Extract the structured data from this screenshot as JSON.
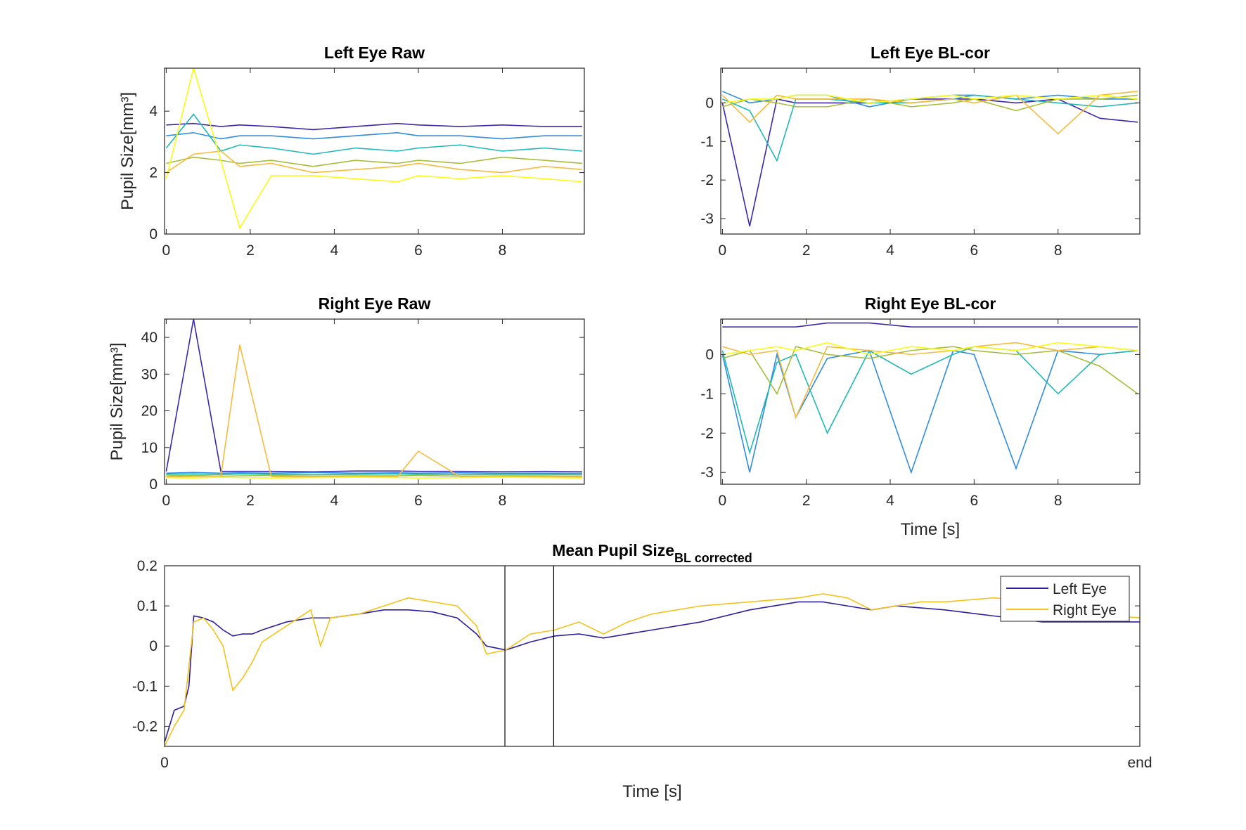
{
  "chart_data": [
    {
      "type": "line",
      "title": "Left Eye Raw",
      "ylabel": "Pupil Size[mm³]",
      "x": [
        0,
        0.65,
        1.3,
        1.75,
        2.5,
        3.5,
        4.5,
        5.5,
        6,
        7,
        8,
        9,
        9.9
      ],
      "series": [
        {
          "color": "#3e26a8",
          "values": [
            3.55,
            3.6,
            3.5,
            3.55,
            3.5,
            3.4,
            3.5,
            3.6,
            3.55,
            3.5,
            3.55,
            3.5,
            3.5
          ]
        },
        {
          "color": "#2f8ce0",
          "values": [
            3.2,
            3.3,
            3.1,
            3.2,
            3.2,
            3.1,
            3.2,
            3.3,
            3.2,
            3.2,
            3.1,
            3.2,
            3.2
          ]
        },
        {
          "color": "#1fb8b4",
          "values": [
            2.8,
            3.9,
            2.7,
            2.9,
            2.8,
            2.6,
            2.8,
            2.7,
            2.8,
            2.9,
            2.7,
            2.8,
            2.7
          ]
        },
        {
          "color": "#a5be3a",
          "values": [
            2.3,
            2.5,
            2.4,
            2.3,
            2.4,
            2.2,
            2.4,
            2.3,
            2.4,
            2.3,
            2.5,
            2.4,
            2.3
          ]
        },
        {
          "color": "#f8ba3d",
          "values": [
            2.0,
            2.6,
            2.7,
            2.2,
            2.3,
            2.0,
            2.1,
            2.2,
            2.3,
            2.1,
            2.0,
            2.2,
            2.1
          ]
        },
        {
          "color": "#f9fb15",
          "values": [
            1.8,
            5.4,
            2.4,
            0.2,
            1.9,
            1.9,
            1.8,
            1.7,
            1.9,
            1.8,
            1.9,
            1.8,
            1.7
          ]
        }
      ],
      "xlim": [
        -0.04,
        9.95
      ],
      "ylim": [
        0,
        5.4
      ],
      "xticks": [
        0,
        2,
        4,
        6,
        8
      ],
      "yticks": [
        0,
        2,
        4
      ]
    },
    {
      "type": "line",
      "title": "Left Eye BL-cor",
      "x": [
        0,
        0.65,
        1.3,
        1.75,
        2.5,
        3.5,
        4.5,
        5.5,
        6,
        7,
        8,
        9,
        9.9
      ],
      "series": [
        {
          "color": "#3e26a8",
          "values": [
            0,
            -3.2,
            0.1,
            0,
            0,
            0,
            0.1,
            0.1,
            0.1,
            0,
            0.1,
            -0.4,
            -0.5
          ]
        },
        {
          "color": "#2f8ce0",
          "values": [
            0.3,
            0,
            0.1,
            0.2,
            0.2,
            -0.1,
            0.1,
            0.2,
            0.2,
            0.1,
            0.2,
            0.1,
            0.1
          ]
        },
        {
          "color": "#1fb8b4",
          "values": [
            0.1,
            -0.2,
            -1.5,
            0.1,
            0.1,
            0,
            0,
            0.1,
            0.2,
            0.1,
            0,
            -0.1,
            0
          ]
        },
        {
          "color": "#a5be3a",
          "values": [
            -0.1,
            0.1,
            0,
            -0.1,
            -0.1,
            0.1,
            -0.1,
            0,
            0.1,
            -0.2,
            0.1,
            0.1,
            0.2
          ]
        },
        {
          "color": "#f8ba3d",
          "values": [
            0.2,
            -0.5,
            0.2,
            0.1,
            0.1,
            0.1,
            0,
            0.1,
            0,
            0.2,
            -0.8,
            0.2,
            0.3
          ]
        },
        {
          "color": "#f9fb15",
          "values": [
            0,
            0.1,
            0.1,
            0.2,
            0.2,
            0,
            0.1,
            0.2,
            0.1,
            0.2,
            0.1,
            0.2,
            0.1
          ]
        }
      ],
      "xlim": [
        -0.04,
        9.95
      ],
      "ylim": [
        -3.4,
        0.9
      ],
      "xticks": [
        0,
        2,
        4,
        6,
        8
      ],
      "yticks": [
        -3,
        -2,
        -1,
        0
      ]
    },
    {
      "type": "line",
      "title": "Right Eye Raw",
      "ylabel": "Pupil Size[mm³]",
      "x": [
        0,
        0.65,
        1.3,
        1.75,
        2.5,
        3.5,
        4.5,
        5.5,
        6,
        7,
        8,
        9,
        9.9
      ],
      "series": [
        {
          "color": "#3e26a8",
          "values": [
            3.5,
            45,
            3.5,
            3.5,
            3.5,
            3.4,
            3.6,
            3.6,
            3.5,
            3.5,
            3.4,
            3.5,
            3.4
          ]
        },
        {
          "color": "#2f8ce0",
          "values": [
            3,
            3.2,
            3,
            3.1,
            3,
            3.2,
            3,
            3.1,
            3,
            3.1,
            3,
            3,
            3
          ]
        },
        {
          "color": "#1fb8b4",
          "values": [
            2.7,
            2.8,
            2.6,
            2.8,
            2.7,
            2.6,
            2.7,
            2.8,
            2.7,
            2.6,
            2.7,
            2.7,
            2.6
          ]
        },
        {
          "color": "#a5be3a",
          "values": [
            2.3,
            2.4,
            2.2,
            2.3,
            2.4,
            2.2,
            2.3,
            2.3,
            2.4,
            2.2,
            2.3,
            2.3,
            2.2
          ]
        },
        {
          "color": "#f8ba3d",
          "values": [
            2,
            2.1,
            2.2,
            38,
            2.1,
            2,
            2.1,
            2,
            9,
            2,
            2.1,
            2,
            2
          ]
        },
        {
          "color": "#f9fb15",
          "values": [
            1.8,
            1.7,
            1.9,
            1.8,
            1.7,
            1.8,
            1.9,
            1.8,
            1.7,
            1.8,
            1.9,
            1.8,
            1.7
          ]
        }
      ],
      "xlim": [
        -0.04,
        9.95
      ],
      "ylim": [
        0,
        45
      ],
      "xticks": [
        0,
        2,
        4,
        6,
        8
      ],
      "yticks": [
        0,
        10,
        20,
        30,
        40
      ]
    },
    {
      "type": "line",
      "title": "Right Eye BL-cor",
      "xlabel": "Time [s]",
      "x": [
        0,
        0.65,
        1.3,
        1.75,
        2.5,
        3.5,
        4.5,
        5.5,
        6,
        7,
        8,
        9,
        9.9
      ],
      "series": [
        {
          "color": "#3e26a8",
          "values": [
            0.7,
            0.7,
            0.7,
            0.7,
            0.8,
            0.8,
            0.7,
            0.7,
            0.7,
            0.7,
            0.7,
            0.7,
            0.7
          ]
        },
        {
          "color": "#2f8ce0",
          "values": [
            0,
            -3,
            0,
            -1.6,
            -0.1,
            0.1,
            -3,
            0.1,
            0,
            -2.9,
            0.1,
            0,
            0.1
          ]
        },
        {
          "color": "#1fb8b4",
          "values": [
            0.1,
            -2.5,
            -0.2,
            0,
            -2,
            0.1,
            -0.5,
            0,
            0.2,
            0.1,
            -1,
            0,
            0.1
          ]
        },
        {
          "color": "#a5be3a",
          "values": [
            -0.1,
            0.1,
            -1,
            0.2,
            0,
            -0.1,
            0.1,
            0.2,
            0.1,
            0,
            0.1,
            -0.3,
            -1
          ]
        },
        {
          "color": "#f8ba3d",
          "values": [
            0.2,
            0,
            0.1,
            -1.6,
            0.2,
            0.1,
            0,
            0.1,
            0.2,
            0.3,
            0.1,
            0.2,
            0.1
          ]
        },
        {
          "color": "#f9fb15",
          "values": [
            0,
            0.1,
            0.2,
            0.1,
            0.3,
            0,
            0.2,
            0.1,
            0.2,
            0.1,
            0.3,
            0.2,
            0.1
          ]
        }
      ],
      "xlim": [
        -0.04,
        9.95
      ],
      "ylim": [
        -3.3,
        0.9
      ],
      "xticks": [
        0,
        2,
        4,
        6,
        8
      ],
      "yticks": [
        -3,
        -2,
        -1,
        0
      ]
    },
    {
      "type": "line",
      "title": "Mean Pupil Size",
      "title_subscript": "BL corrected",
      "xlabel": "Time [s]",
      "x": [
        0,
        1,
        2,
        2.5,
        3,
        4,
        5,
        6,
        7,
        8,
        9,
        10,
        12.5,
        15,
        16,
        17,
        20,
        22.5,
        25,
        27.5,
        30,
        32,
        33,
        35,
        37.5,
        40,
        42.5,
        45,
        47.5,
        50,
        55,
        60,
        65,
        67.5,
        70,
        72.5,
        75,
        77.5,
        80,
        85,
        90,
        95,
        100
      ],
      "series": [
        {
          "name": "Left Eye",
          "color": "#2e1f9c",
          "values": [
            -0.24,
            -0.16,
            -0.15,
            -0.1,
            0.075,
            0.07,
            0.06,
            0.04,
            0.025,
            0.03,
            0.03,
            0.04,
            0.06,
            0.07,
            0.07,
            0.07,
            0.08,
            0.09,
            0.09,
            0.085,
            0.07,
            0.03,
            0.0,
            -0.01,
            0.01,
            0.025,
            0.03,
            0.02,
            0.03,
            0.04,
            0.06,
            0.09,
            0.11,
            0.11,
            0.1,
            0.09,
            0.1,
            0.095,
            0.09,
            0.075,
            0.06,
            0.06,
            0.06
          ]
        },
        {
          "name": "Right Eye",
          "color": "#f5c21b",
          "values": [
            -0.25,
            -0.2,
            -0.16,
            -0.05,
            0.06,
            0.07,
            0.04,
            0.0,
            -0.11,
            -0.08,
            -0.04,
            0.01,
            0.05,
            0.09,
            0.0,
            0.07,
            0.08,
            0.1,
            0.12,
            0.11,
            0.1,
            0.05,
            -0.02,
            -0.01,
            0.03,
            0.04,
            0.06,
            0.03,
            0.06,
            0.08,
            0.1,
            0.11,
            0.12,
            0.13,
            0.12,
            0.09,
            0.1,
            0.11,
            0.11,
            0.12,
            0.11,
            0.08,
            0.07
          ]
        }
      ],
      "vlines": [
        34.9,
        39.9
      ],
      "xlim": [
        0,
        100
      ],
      "ylim": [
        -0.25,
        0.2
      ],
      "xticks": [
        0,
        {
          "value": 100,
          "label": "end"
        }
      ],
      "yticks": [
        -0.2,
        -0.1,
        0,
        0.1,
        0.2
      ],
      "legend": "northeast"
    }
  ]
}
